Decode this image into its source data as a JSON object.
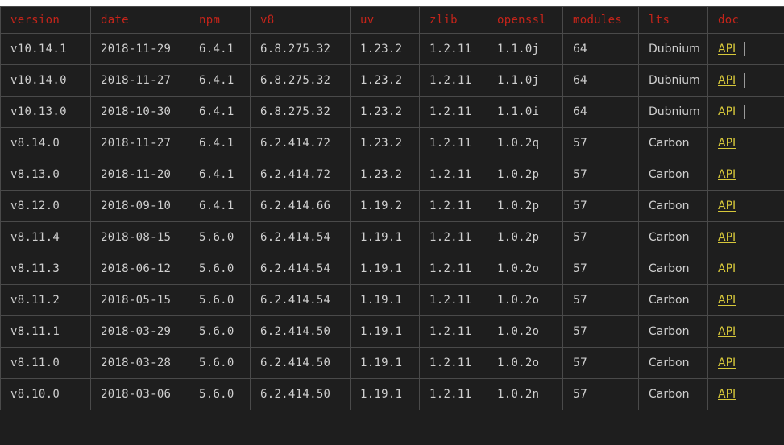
{
  "table": {
    "headers": [
      "version",
      "date",
      "npm",
      "v8",
      "uv",
      "zlib",
      "openssl",
      "modules",
      "lts",
      "doc"
    ],
    "rows": [
      {
        "version": "v10.14.1",
        "date": "2018-11-29",
        "npm": "6.4.1",
        "v8": "6.8.275.32",
        "uv": "1.23.2",
        "zlib": "1.2.11",
        "openssl": "1.1.0j",
        "modules": "64",
        "lts": "Dubnium",
        "doc": "API"
      },
      {
        "version": "v10.14.0",
        "date": "2018-11-27",
        "npm": "6.4.1",
        "v8": "6.8.275.32",
        "uv": "1.23.2",
        "zlib": "1.2.11",
        "openssl": "1.1.0j",
        "modules": "64",
        "lts": "Dubnium",
        "doc": "API"
      },
      {
        "version": "v10.13.0",
        "date": "2018-10-30",
        "npm": "6.4.1",
        "v8": "6.8.275.32",
        "uv": "1.23.2",
        "zlib": "1.2.11",
        "openssl": "1.1.0i",
        "modules": "64",
        "lts": "Dubnium",
        "doc": "API"
      },
      {
        "version": "v8.14.0",
        "date": "2018-11-27",
        "npm": "6.4.1",
        "v8": "6.2.414.72",
        "uv": "1.23.2",
        "zlib": "1.2.11",
        "openssl": "1.0.2q",
        "modules": "57",
        "lts": "Carbon",
        "doc": "API"
      },
      {
        "version": "v8.13.0",
        "date": "2018-11-20",
        "npm": "6.4.1",
        "v8": "6.2.414.72",
        "uv": "1.23.2",
        "zlib": "1.2.11",
        "openssl": "1.0.2p",
        "modules": "57",
        "lts": "Carbon",
        "doc": "API"
      },
      {
        "version": "v8.12.0",
        "date": "2018-09-10",
        "npm": "6.4.1",
        "v8": "6.2.414.66",
        "uv": "1.19.2",
        "zlib": "1.2.11",
        "openssl": "1.0.2p",
        "modules": "57",
        "lts": "Carbon",
        "doc": "API"
      },
      {
        "version": "v8.11.4",
        "date": "2018-08-15",
        "npm": "5.6.0",
        "v8": "6.2.414.54",
        "uv": "1.19.1",
        "zlib": "1.2.11",
        "openssl": "1.0.2p",
        "modules": "57",
        "lts": "Carbon",
        "doc": "API"
      },
      {
        "version": "v8.11.3",
        "date": "2018-06-12",
        "npm": "5.6.0",
        "v8": "6.2.414.54",
        "uv": "1.19.1",
        "zlib": "1.2.11",
        "openssl": "1.0.2o",
        "modules": "57",
        "lts": "Carbon",
        "doc": "API"
      },
      {
        "version": "v8.11.2",
        "date": "2018-05-15",
        "npm": "5.6.0",
        "v8": "6.2.414.54",
        "uv": "1.19.1",
        "zlib": "1.2.11",
        "openssl": "1.0.2o",
        "modules": "57",
        "lts": "Carbon",
        "doc": "API"
      },
      {
        "version": "v8.11.1",
        "date": "2018-03-29",
        "npm": "5.6.0",
        "v8": "6.2.414.50",
        "uv": "1.19.1",
        "zlib": "1.2.11",
        "openssl": "1.0.2o",
        "modules": "57",
        "lts": "Carbon",
        "doc": "API"
      },
      {
        "version": "v8.11.0",
        "date": "2018-03-28",
        "npm": "5.6.0",
        "v8": "6.2.414.50",
        "uv": "1.19.1",
        "zlib": "1.2.11",
        "openssl": "1.0.2o",
        "modules": "57",
        "lts": "Carbon",
        "doc": "API"
      },
      {
        "version": "v8.10.0",
        "date": "2018-03-06",
        "npm": "5.6.0",
        "v8": "6.2.414.50",
        "uv": "1.19.1",
        "zlib": "1.2.11",
        "openssl": "1.0.2n",
        "modules": "57",
        "lts": "Carbon",
        "doc": "API"
      }
    ]
  },
  "colors": {
    "background": "#1e1e1e",
    "header_text": "#c4241a",
    "cell_text": "#cfcfcf",
    "link": "#d6c73a",
    "grid": "#4a4a4a"
  }
}
